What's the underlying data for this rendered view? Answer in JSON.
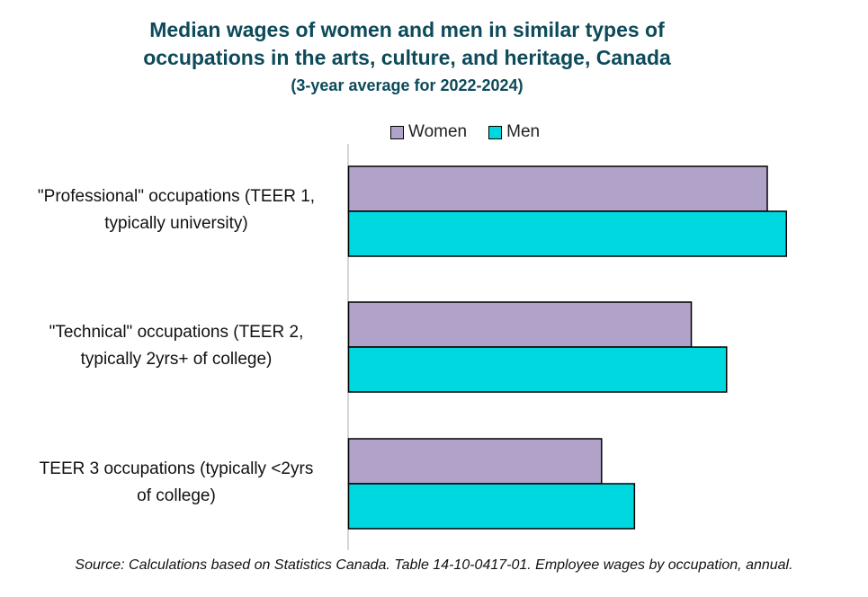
{
  "title_lines": [
    "Median wages of women and men in similar types of",
    "occupations in the arts, culture, and heritage, Canada"
  ],
  "subtitle": "(3-year average for 2022-2024)",
  "source": "Source: Calculations based on Statistics Canada. Table 14-10-0417-01. Employee wages by occupation, annual.",
  "colors": {
    "women": "#b1a2c9",
    "men": "#00d8e0",
    "axis": "#c8c8c8"
  },
  "chart_data": {
    "type": "bar",
    "orientation": "horizontal",
    "categories": [
      "\"Professional\" occupations (TEER 1, typically university)",
      "\"Technical\" occupations (TEER 2, typically 2yrs+ of college)",
      "TEER 3 occupations (typically <2yrs of college)"
    ],
    "category_lines": [
      [
        "\"Professional\" occupations (TEER 1,",
        "typically university)"
      ],
      [
        "\"Technical\" occupations (TEER 2,",
        "typically 2yrs+ of college)"
      ],
      [
        "TEER 3 occupations (typically <2yrs",
        "of college)"
      ]
    ],
    "series": [
      {
        "name": "Women",
        "values": [
          70,
          57.3,
          42.3
        ]
      },
      {
        "name": "Men",
        "values": [
          73.2,
          63.2,
          47.8
        ]
      }
    ],
    "xlim": [
      0,
      80
    ],
    "legend": "top",
    "grid": false,
    "value_axis_labels_shown": false
  }
}
